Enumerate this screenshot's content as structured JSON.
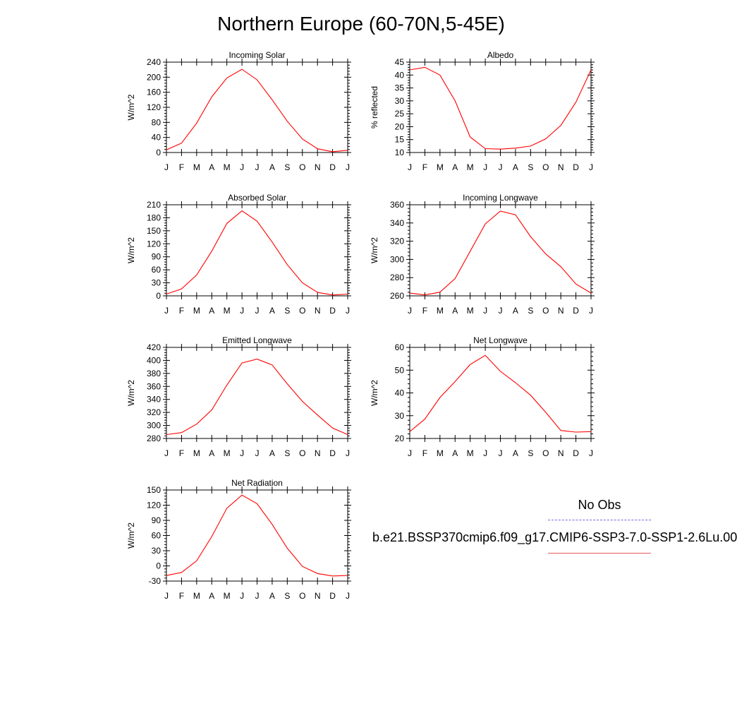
{
  "title": "Northern Europe (60-70N,5-45E)",
  "legend": {
    "obs_label": "No Obs",
    "case_label": "b.e21.BSSP370cmip6.f09_g17.CMIP6-SSP3-7.0-SSP1-2.6Lu.00",
    "obs_color": "#6f6fdc",
    "case_color": "#e85a5a"
  },
  "colors": {
    "series": "#ff0000",
    "axis": "#000000"
  },
  "chart_data": [
    {
      "type": "line",
      "title": "Incoming Solar",
      "ylabel": "W/m^2",
      "categories": [
        "J",
        "F",
        "M",
        "A",
        "M",
        "J",
        "J",
        "A",
        "S",
        "O",
        "N",
        "D",
        "J"
      ],
      "ylim": [
        0,
        240
      ],
      "yticks": [
        0,
        40,
        80,
        120,
        160,
        200,
        240
      ],
      "series": [
        {
          "values": [
            7,
            25,
            78,
            148,
            198,
            221,
            193,
            140,
            83,
            36,
            10,
            2,
            6
          ]
        }
      ]
    },
    {
      "type": "line",
      "title": "Albedo",
      "ylabel": "% reflected",
      "categories": [
        "J",
        "F",
        "M",
        "A",
        "M",
        "J",
        "J",
        "A",
        "S",
        "O",
        "N",
        "D",
        "J"
      ],
      "ylim": [
        10,
        45
      ],
      "yticks": [
        10,
        15,
        20,
        25,
        30,
        35,
        40,
        45
      ],
      "series": [
        {
          "values": [
            42,
            43,
            40,
            30,
            16,
            11.5,
            11.3,
            11.7,
            12.5,
            15.3,
            20.5,
            29.5,
            42
          ]
        }
      ]
    },
    {
      "type": "line",
      "title": "Absorbed Solar",
      "ylabel": "W/m^2",
      "categories": [
        "J",
        "F",
        "M",
        "A",
        "M",
        "J",
        "J",
        "A",
        "S",
        "O",
        "N",
        "D",
        "J"
      ],
      "ylim": [
        0,
        210
      ],
      "yticks": [
        0,
        30,
        60,
        90,
        120,
        150,
        180,
        210
      ],
      "series": [
        {
          "values": [
            4,
            16,
            48,
            103,
            167,
            196,
            172,
            124,
            72,
            30,
            8,
            2,
            4
          ]
        }
      ]
    },
    {
      "type": "line",
      "title": "Incoming Longwave",
      "ylabel": "W/m^2",
      "categories": [
        "J",
        "F",
        "M",
        "A",
        "M",
        "J",
        "J",
        "A",
        "S",
        "O",
        "N",
        "D",
        "J"
      ],
      "ylim": [
        260,
        360
      ],
      "yticks": [
        260,
        280,
        300,
        320,
        340,
        360
      ],
      "series": [
        {
          "values": [
            263,
            261,
            264,
            279,
            309,
            339,
            353,
            349,
            325,
            306,
            292,
            273,
            263
          ]
        }
      ]
    },
    {
      "type": "line",
      "title": "Emitted Longwave",
      "ylabel": "W/m^2",
      "categories": [
        "J",
        "F",
        "M",
        "A",
        "M",
        "J",
        "J",
        "A",
        "S",
        "O",
        "N",
        "D",
        "J"
      ],
      "ylim": [
        280,
        420
      ],
      "yticks": [
        280,
        300,
        320,
        340,
        360,
        380,
        400,
        420
      ],
      "series": [
        {
          "values": [
            286,
            289,
            302,
            324,
            362,
            396,
            402,
            393,
            364,
            337,
            316,
            296,
            286
          ]
        }
      ]
    },
    {
      "type": "line",
      "title": "Net Longwave",
      "ylabel": "W/m^2",
      "categories": [
        "J",
        "F",
        "M",
        "A",
        "M",
        "J",
        "J",
        "A",
        "S",
        "O",
        "N",
        "D",
        "J"
      ],
      "ylim": [
        20,
        60
      ],
      "yticks": [
        20,
        30,
        40,
        50,
        60
      ],
      "series": [
        {
          "values": [
            23,
            28.5,
            38,
            45,
            52.5,
            56.5,
            49.5,
            44.5,
            39,
            31.5,
            23.5,
            22.8,
            23
          ]
        }
      ]
    },
    {
      "type": "line",
      "title": "Net Radiation",
      "ylabel": "W/m^2",
      "categories": [
        "J",
        "F",
        "M",
        "A",
        "M",
        "J",
        "J",
        "A",
        "S",
        "O",
        "N",
        "D",
        "J"
      ],
      "ylim": [
        -30,
        150
      ],
      "yticks": [
        -30,
        0,
        30,
        60,
        90,
        120,
        150
      ],
      "series": [
        {
          "values": [
            -19,
            -13,
            10,
            58,
            114,
            140,
            123,
            82,
            35,
            -1,
            -15,
            -20,
            -19
          ]
        }
      ]
    }
  ]
}
